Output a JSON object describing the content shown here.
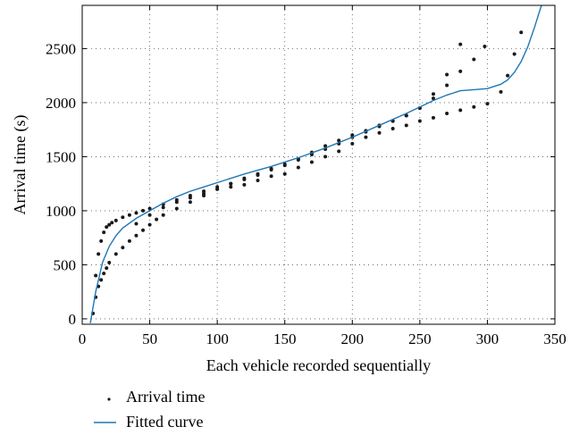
{
  "chart_data": {
    "type": "scatter",
    "title": "",
    "xlabel": "Each vehicle recorded sequentially",
    "ylabel": "Arrival time (s)",
    "xlim": [
      0,
      350
    ],
    "ylim": [
      -50,
      2900
    ],
    "xticks": [
      0,
      50,
      100,
      150,
      200,
      250,
      300,
      350
    ],
    "yticks": [
      0,
      500,
      1000,
      1500,
      2000,
      2500
    ],
    "grid": true,
    "grid_style": "dotted",
    "legend": {
      "placement": "below"
    },
    "colors": {
      "points": "#1a1a1a",
      "curve": "#1f77b4"
    },
    "series": [
      {
        "name": "Arrival time",
        "kind": "scatter",
        "clusters": [
          {
            "x": [
              10,
              12,
              14,
              16,
              18,
              20,
              22,
              25,
              30,
              35,
              40,
              45,
              50,
              60,
              70,
              80,
              90,
              100,
              110,
              120,
              130,
              140,
              150,
              160,
              170,
              180,
              190,
              200,
              210,
              220,
              230,
              240,
              250,
              260,
              270,
              280
            ],
            "y": [
              400,
              600,
              720,
              800,
              850,
              870,
              890,
              910,
              940,
              960,
              980,
              1000,
              1020,
              1060,
              1100,
              1140,
              1180,
              1220,
              1250,
              1300,
              1340,
              1390,
              1430,
              1480,
              1540,
              1600,
              1650,
              1700,
              1740,
              1790,
              1830,
              1880,
              1950,
              2080,
              2260,
              2540
            ]
          },
          {
            "x": [
              8,
              10,
              12,
              14,
              16,
              18,
              20,
              25,
              30,
              35,
              40,
              45,
              50,
              55,
              60,
              70,
              80,
              90,
              100,
              110,
              120,
              130,
              140,
              150,
              160,
              170,
              180,
              190,
              200,
              210,
              220,
              230,
              240,
              250,
              260,
              270,
              280,
              290,
              298
            ],
            "y": [
              50,
              200,
              300,
              360,
              420,
              470,
              520,
              600,
              660,
              720,
              770,
              820,
              870,
              920,
              960,
              1020,
              1080,
              1140,
              1200,
              1250,
              1290,
              1330,
              1380,
              1420,
              1470,
              1520,
              1570,
              1620,
              1680,
              1730,
              1780,
              1830,
              1880,
              1950,
              2040,
              2160,
              2290,
              2400,
              2520
            ]
          },
          {
            "x": [
              40,
              50,
              60,
              70,
              80,
              90,
              100,
              110,
              120,
              130,
              140,
              150,
              160,
              170,
              180,
              190,
              200,
              210,
              220,
              230,
              240,
              250,
              260,
              270,
              280,
              290,
              300,
              310,
              315,
              320,
              325
            ],
            "y": [
              880,
              960,
              1030,
              1080,
              1120,
              1160,
              1200,
              1220,
              1240,
              1280,
              1320,
              1340,
              1400,
              1450,
              1500,
              1550,
              1620,
              1680,
              1720,
              1760,
              1790,
              1830,
              1860,
              1900,
              1930,
              1960,
              1990,
              2100,
              2250,
              2450,
              2650
            ]
          }
        ]
      },
      {
        "name": "Fitted curve",
        "kind": "line",
        "x": [
          6,
          10,
          15,
          20,
          25,
          30,
          40,
          50,
          60,
          70,
          80,
          90,
          100,
          120,
          140,
          160,
          180,
          200,
          220,
          240,
          250,
          260,
          270,
          280,
          290,
          300,
          310,
          315,
          320,
          325,
          330,
          335,
          340
        ],
        "y": [
          -40,
          250,
          520,
          670,
          770,
          840,
          930,
          1000,
          1070,
          1130,
          1180,
          1220,
          1260,
          1340,
          1410,
          1490,
          1580,
          1680,
          1790,
          1900,
          1960,
          2020,
          2070,
          2110,
          2120,
          2130,
          2170,
          2210,
          2280,
          2380,
          2520,
          2700,
          2900
        ]
      }
    ]
  },
  "legend_items": [
    {
      "label": "Arrival time"
    },
    {
      "label": "Fitted curve"
    }
  ]
}
